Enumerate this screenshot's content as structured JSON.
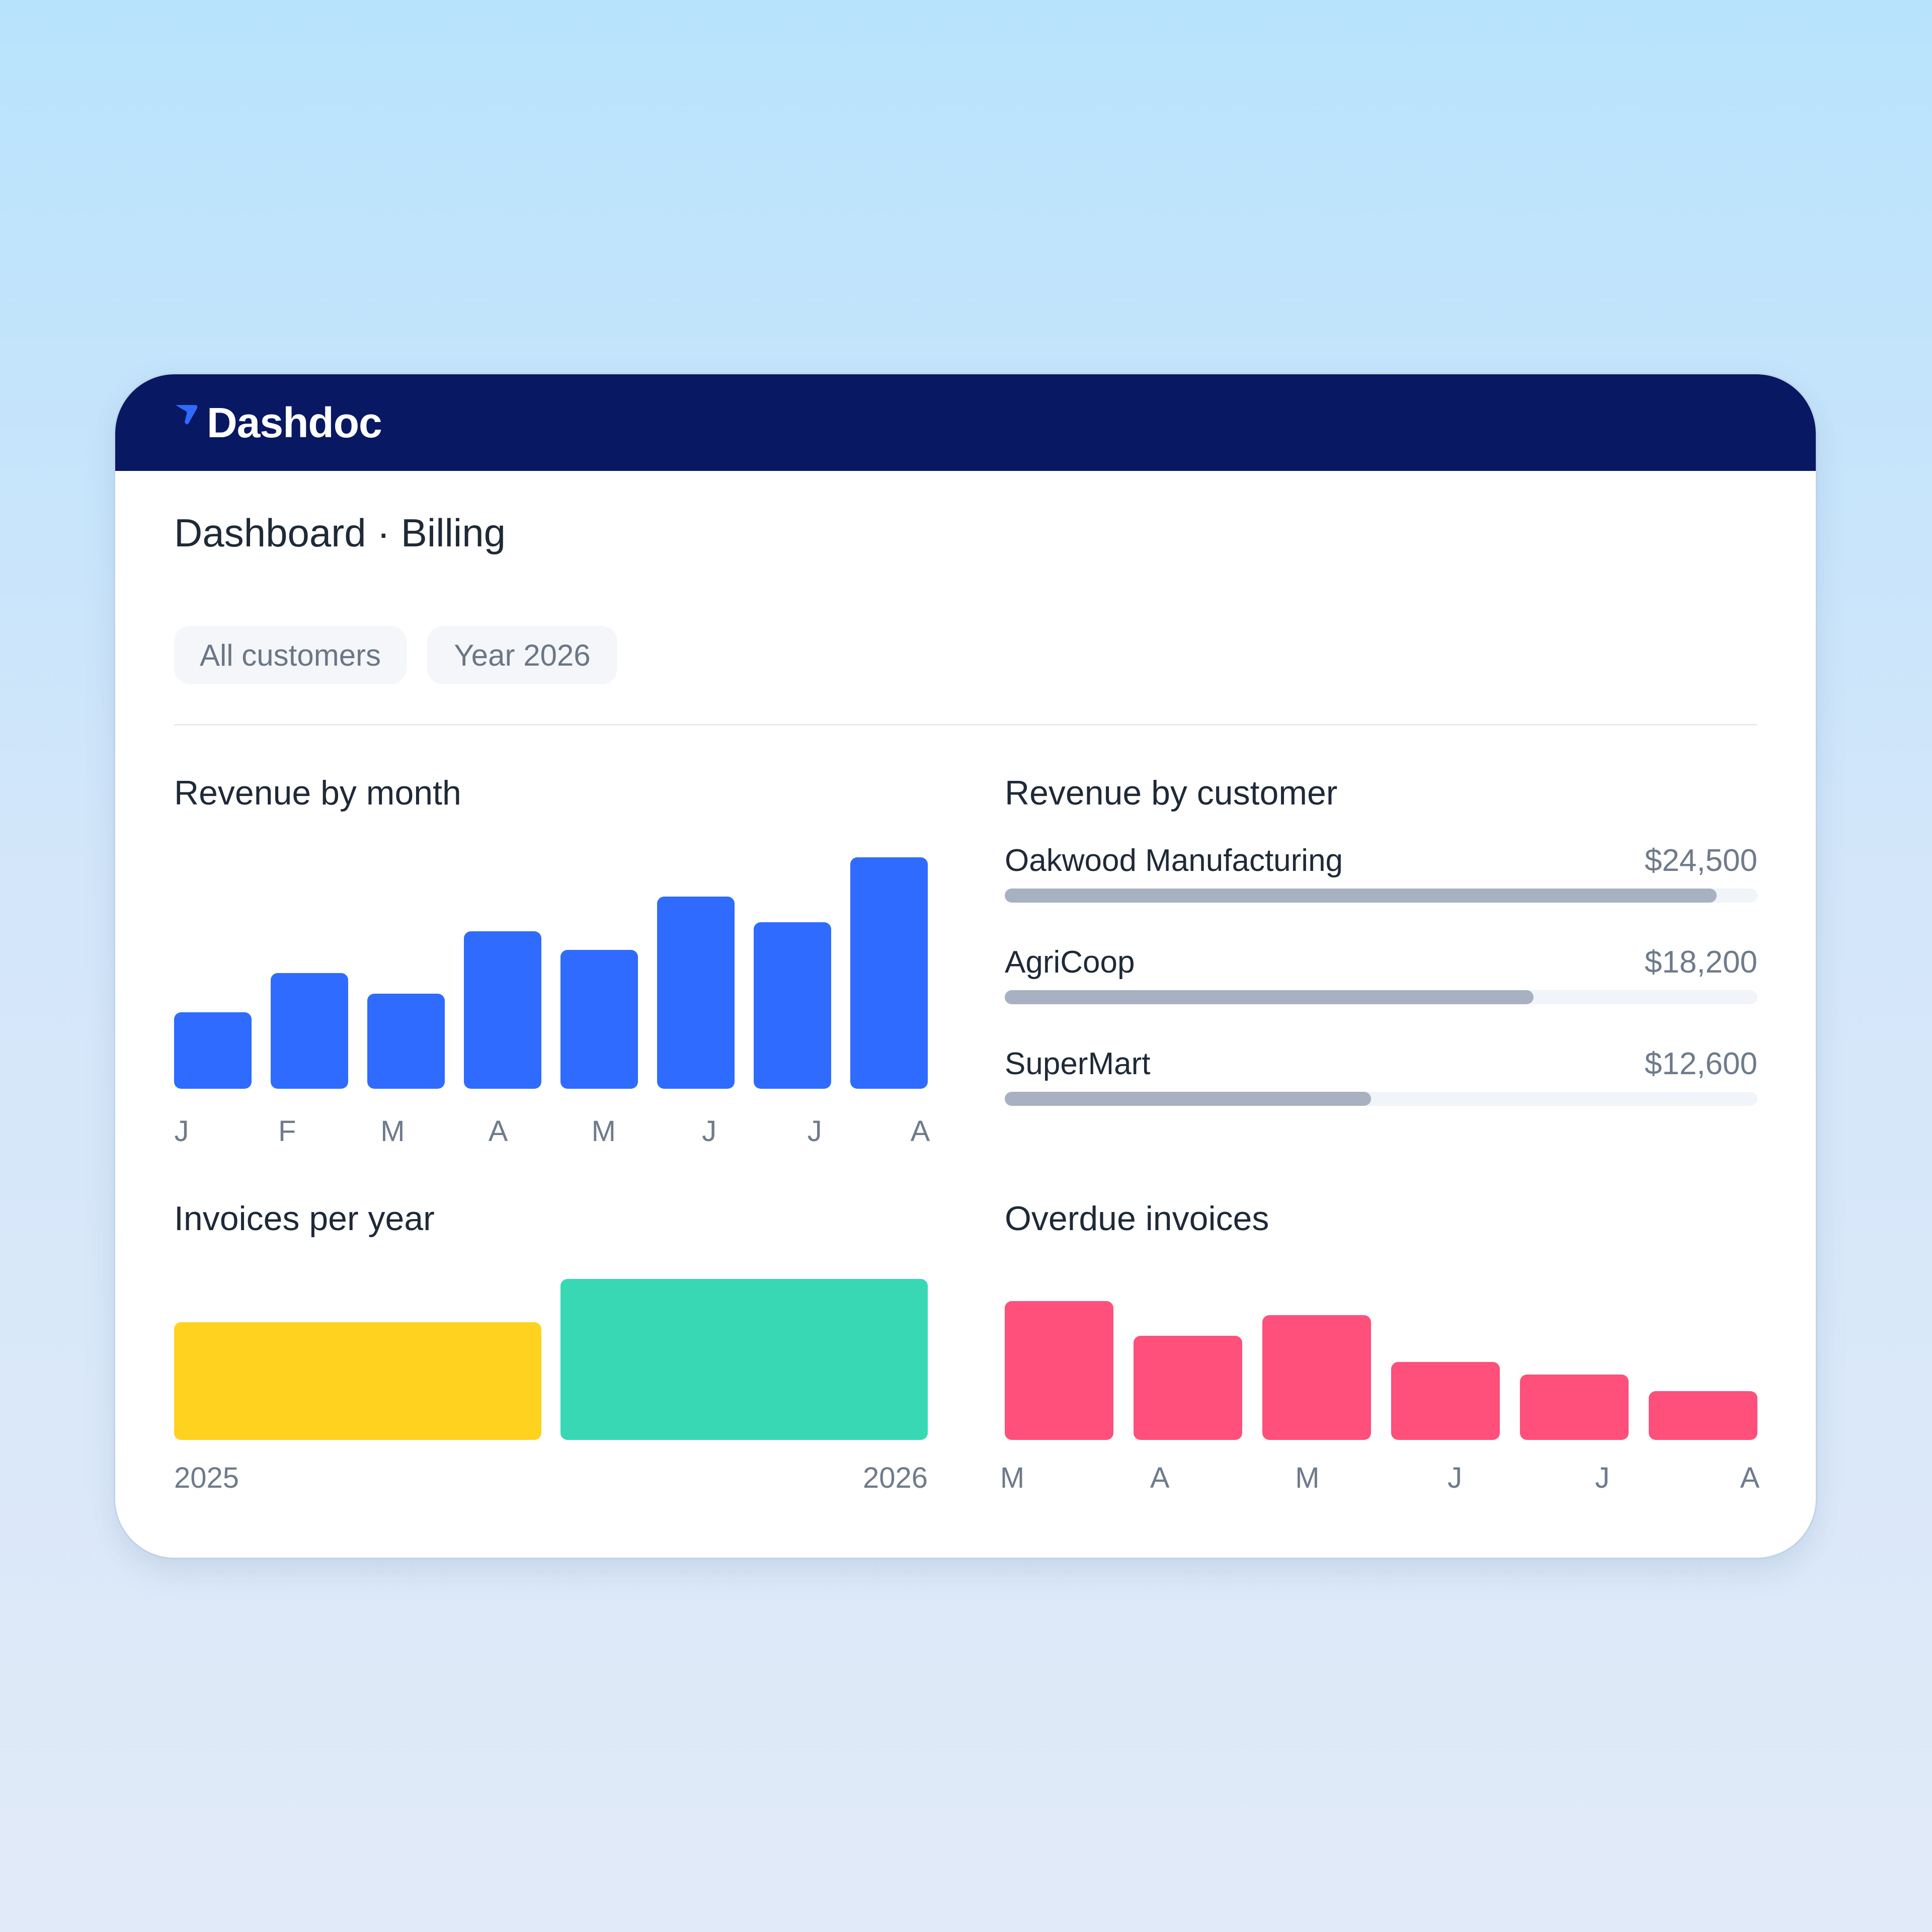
{
  "app": {
    "brand": "Dashdoc",
    "page_title": "Dashboard · Billing"
  },
  "filters": [
    {
      "label": "All customers"
    },
    {
      "label": "Year 2026"
    }
  ],
  "colors": {
    "topbar": "#081862",
    "monthly_bar": "#2f6bff",
    "year_2025": "#ffd21f",
    "year_2026": "#38d8b5",
    "overdue": "#ff4f7b",
    "customer_bar": "#a7b1c2"
  },
  "revenue_by_month": {
    "title": "Revenue by month",
    "chart_data": {
      "type": "bar",
      "categories": [
        "J",
        "F",
        "M",
        "A",
        "M",
        "J",
        "J",
        "A"
      ],
      "values": [
        33,
        50,
        41,
        68,
        60,
        83,
        72,
        100
      ]
    }
  },
  "revenue_by_customer": {
    "title": "Revenue by customer",
    "chart_data": {
      "type": "bar",
      "categories": [
        "Oakwood Manufacturing",
        "AgriCoop",
        "SuperMart"
      ],
      "values": [
        24500,
        18200,
        12600
      ],
      "labels": [
        "$24,500",
        "$18,200",
        "$12,600"
      ],
      "max": 25900
    }
  },
  "invoices_per_year": {
    "title": "Invoices per year",
    "chart_data": {
      "type": "bar",
      "categories": [
        "2025",
        "2026"
      ],
      "values": [
        73,
        100
      ]
    }
  },
  "overdue_invoices": {
    "title": "Overdue invoices",
    "chart_data": {
      "type": "bar",
      "categories": [
        "M",
        "A",
        "M",
        "J",
        "J",
        "A"
      ],
      "values": [
        100,
        75,
        90,
        56,
        47,
        35
      ]
    }
  }
}
